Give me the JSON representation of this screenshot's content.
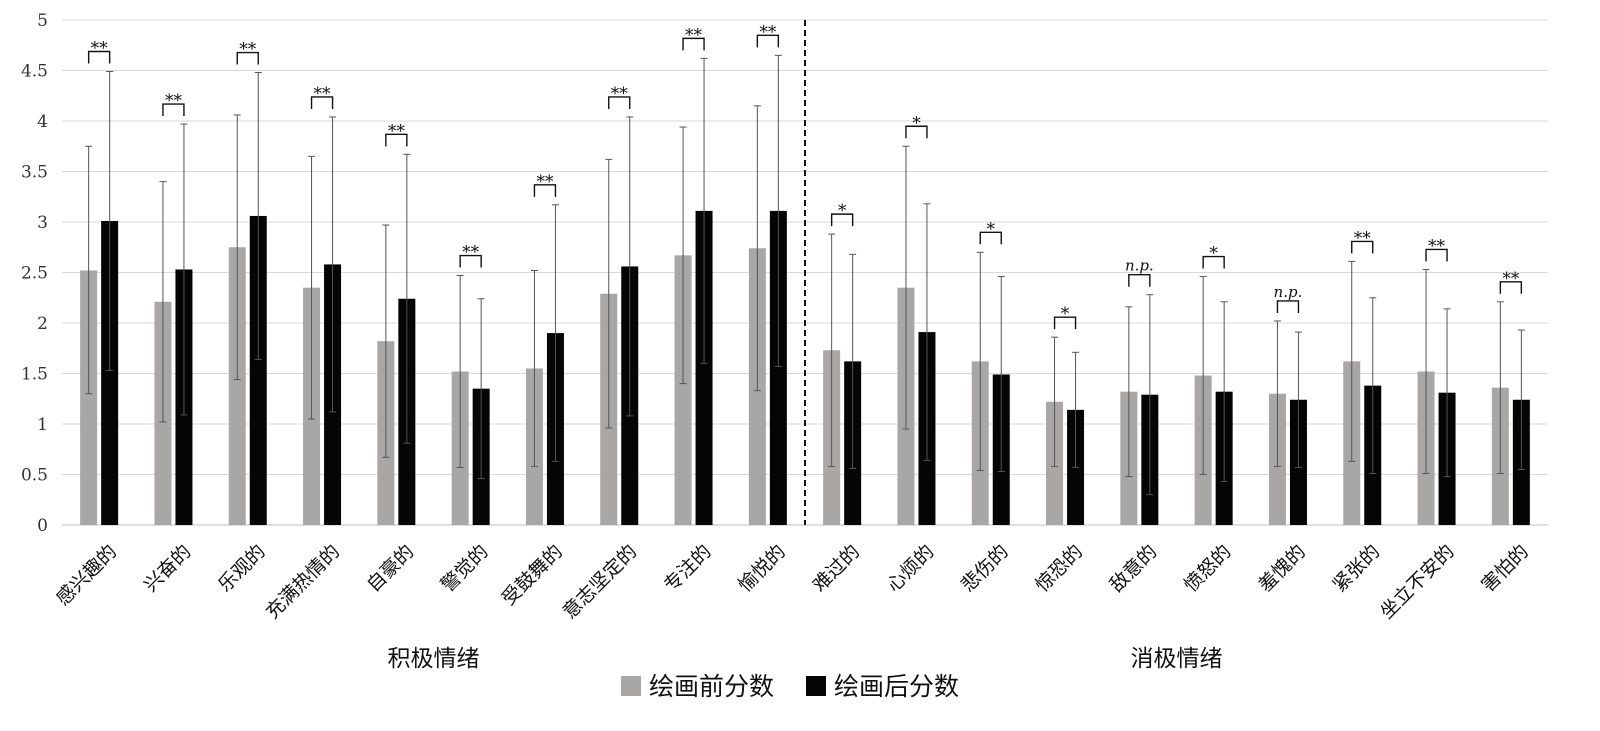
{
  "chart_data": {
    "type": "bar",
    "ylim": [
      0,
      5
    ],
    "yticks": [
      "0",
      "0.5",
      "1",
      "1.5",
      "2",
      "2.5",
      "3",
      "3.5",
      "4",
      "4.5",
      "5"
    ],
    "categories": [
      "感兴趣的",
      "兴奋的",
      "乐观的",
      "充满热情的",
      "自豪的",
      "警觉的",
      "受鼓舞的",
      "意志坚定的",
      "专注的",
      "愉悦的",
      "难过的",
      "心烦的",
      "悲伤的",
      "惊恐的",
      "敌意的",
      "愤怒的",
      "羞愧的",
      "紧张的",
      "坐立不安的",
      "害怕的"
    ],
    "groups": [
      {
        "label": "积极情绪",
        "count": 10
      },
      {
        "label": "消极情绪",
        "count": 10
      }
    ],
    "series": [
      {
        "name": "绘画前分数",
        "color": "#a9a6a6",
        "values": [
          2.52,
          2.21,
          2.75,
          2.35,
          1.82,
          1.52,
          1.55,
          2.29,
          2.67,
          2.74,
          1.73,
          2.35,
          1.62,
          1.22,
          1.32,
          1.48,
          1.3,
          1.62,
          1.52,
          1.36
        ],
        "err_low": [
          1.3,
          1.02,
          1.44,
          1.05,
          0.67,
          0.57,
          0.58,
          0.96,
          1.4,
          1.33,
          0.58,
          0.95,
          0.54,
          0.58,
          0.48,
          0.5,
          0.58,
          0.63,
          0.51,
          0.51
        ],
        "err_high": [
          3.75,
          3.4,
          4.06,
          3.65,
          2.97,
          2.47,
          2.52,
          3.62,
          3.94,
          4.15,
          2.88,
          3.75,
          2.7,
          1.86,
          2.16,
          2.46,
          2.02,
          2.61,
          2.53,
          2.21
        ]
      },
      {
        "name": "绘画后分数",
        "color": "#050505",
        "values": [
          3.01,
          2.53,
          3.06,
          2.58,
          2.24,
          1.35,
          1.9,
          2.56,
          3.11,
          3.11,
          1.62,
          1.91,
          1.49,
          1.14,
          1.29,
          1.32,
          1.24,
          1.38,
          1.31,
          1.24
        ],
        "err_low": [
          1.53,
          1.09,
          1.64,
          1.12,
          0.81,
          0.46,
          0.63,
          1.08,
          1.6,
          1.57,
          0.56,
          0.64,
          0.53,
          0.57,
          0.3,
          0.43,
          0.57,
          0.51,
          0.48,
          0.55
        ],
        "err_high": [
          4.49,
          3.97,
          4.48,
          4.04,
          3.67,
          2.24,
          3.17,
          4.04,
          4.62,
          4.65,
          2.68,
          3.18,
          2.46,
          1.71,
          2.28,
          2.21,
          1.91,
          2.25,
          2.14,
          1.93
        ]
      }
    ],
    "significance": [
      "**",
      "**",
      "**",
      "**",
      "**",
      "**",
      "**",
      "**",
      "**",
      "**",
      "*",
      "*",
      "*",
      "*",
      "n.p.",
      "*",
      "n.p.",
      "**",
      "**",
      "**"
    ],
    "grid": true,
    "legend": "bottom-center"
  }
}
